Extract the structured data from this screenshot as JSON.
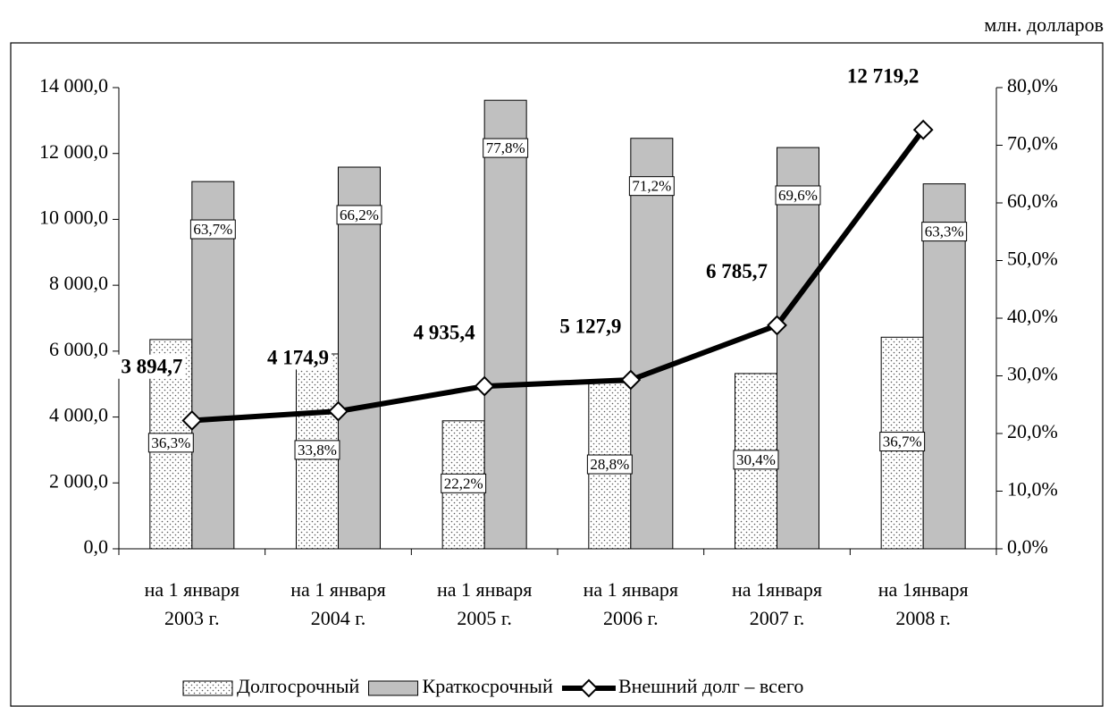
{
  "chart_data": {
    "type": "bar_line",
    "unit": "млн. долларов",
    "categories": [
      [
        "на 1 января",
        "2003 г."
      ],
      [
        "на 1 января",
        "2004 г."
      ],
      [
        "на 1 января",
        "2005 г."
      ],
      [
        "на 1 января",
        "2006 г."
      ],
      [
        "на 1января",
        "2007 г."
      ],
      [
        "на 1января",
        "2008 г."
      ]
    ],
    "series": [
      {
        "name": "Долгосрочный",
        "type": "bar",
        "axis": "y2",
        "color": "#ffffff",
        "pattern": "dots",
        "values": [
          36.3,
          33.8,
          22.2,
          28.8,
          30.4,
          36.7
        ],
        "value_labels": [
          "36,3%",
          "33,8%",
          "22,2%",
          "28,8%",
          "30,4%",
          "36,7%"
        ]
      },
      {
        "name": "Краткосрочный",
        "type": "bar",
        "axis": "y2",
        "color": "#c0c0c0",
        "values": [
          63.7,
          66.2,
          77.8,
          71.2,
          69.6,
          63.3
        ],
        "value_labels": [
          "63,7%",
          "66,2%",
          "77,8%",
          "71,2%",
          "69,6%",
          "63,3%"
        ]
      },
      {
        "name": "Внешний долг – всего",
        "type": "line",
        "axis": "y",
        "color": "#000000",
        "values": [
          3894.7,
          4174.9,
          4935.4,
          5127.9,
          6785.7,
          12719.2
        ],
        "value_labels": [
          "3 894,7",
          "4 174,9",
          "4 935,4",
          "5 127,9",
          "6 785,7",
          "12 719,2"
        ]
      }
    ],
    "ylim": [
      0,
      14000
    ],
    "yticks": [
      {
        "value": 0,
        "label": "0,0"
      },
      {
        "value": 2000,
        "label": "2 000,0"
      },
      {
        "value": 4000,
        "label": "4 000,0"
      },
      {
        "value": 6000,
        "label": "6 000,0"
      },
      {
        "value": 8000,
        "label": "8 000,0"
      },
      {
        "value": 10000,
        "label": "10 000,0"
      },
      {
        "value": 12000,
        "label": "12 000,0"
      },
      {
        "value": 14000,
        "label": "14 000,0"
      }
    ],
    "y2lim": [
      0,
      80
    ],
    "y2ticks": [
      {
        "value": 0,
        "label": "0,0%"
      },
      {
        "value": 10,
        "label": "10,0%"
      },
      {
        "value": 20,
        "label": "20,0%"
      },
      {
        "value": 30,
        "label": "30,0%"
      },
      {
        "value": 40,
        "label": "40,0%"
      },
      {
        "value": 50,
        "label": "50,0%"
      },
      {
        "value": 60,
        "label": "60,0%"
      },
      {
        "value": 70,
        "label": "70,0%"
      },
      {
        "value": 80,
        "label": "80,0%"
      }
    ],
    "legend": "bottom",
    "grid": false
  }
}
